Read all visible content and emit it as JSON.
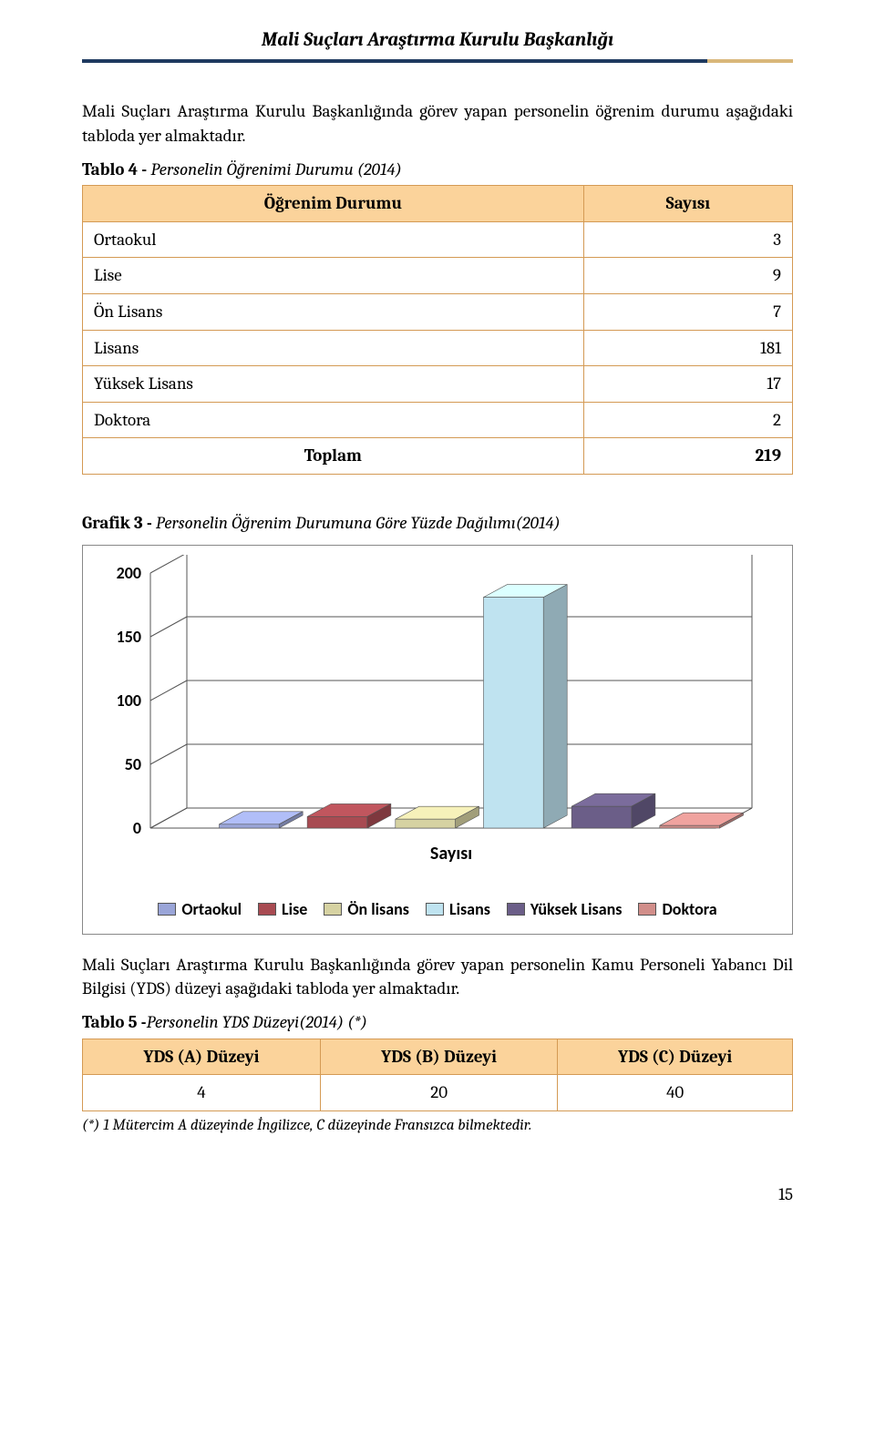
{
  "header": {
    "title": "Mali Suçları Araştırma Kurulu Başkanlığı"
  },
  "intro1": "Mali Suçları Araştırma Kurulu Başkanlığında görev yapan personelin öğrenim durumu aşağıdaki tabloda yer almaktadır.",
  "table4": {
    "caption_bold": "Tablo 4 -",
    "caption_ital": " Personelin Öğrenimi Durumu (2014)",
    "head_col1": "Öğrenim Durumu",
    "head_col2": "Sayısı",
    "rows": [
      {
        "label": "Ortaokul",
        "value": "3"
      },
      {
        "label": "Lise",
        "value": "9"
      },
      {
        "label": "Ön Lisans",
        "value": "7"
      },
      {
        "label": "Lisans",
        "value": "181"
      },
      {
        "label": "Yüksek Lisans",
        "value": "17"
      },
      {
        "label": "Doktora",
        "value": "2"
      }
    ],
    "total_label": "Toplam",
    "total_value": "219"
  },
  "chart": {
    "title_bold": "Grafik 3 -",
    "title_ital": " Personelin Öğrenim Durumuna Göre Yüzde Dağılımı(2014)",
    "ylim": [
      0,
      200
    ],
    "yticks": [
      "200",
      "150",
      "100",
      "50",
      "0"
    ],
    "xaxis_label": "Sayısı",
    "background_color": "#ffffff",
    "grid_color": "#555555",
    "series": [
      {
        "name": "Ortaokul",
        "value": 3,
        "color": "#9aa5d8"
      },
      {
        "name": "Lise",
        "value": 9,
        "color": "#a84b52"
      },
      {
        "name": "Ön lisans",
        "value": 7,
        "color": "#d6d2a2"
      },
      {
        "name": "Lisans",
        "value": 181,
        "color": "#bfe3f0"
      },
      {
        "name": "Yüksek Lisans",
        "value": 17,
        "color": "#6b5e88"
      },
      {
        "name": "Doktora",
        "value": 2,
        "color": "#d18e8a"
      }
    ]
  },
  "intro2": "Mali Suçları Araştırma Kurulu Başkanlığında görev yapan personelin Kamu Personeli Yabancı Dil Bilgisi (YDS) düzeyi aşağıdaki tabloda yer almaktadır.",
  "table5": {
    "caption_bold": "Tablo 5 -",
    "caption_ital": "Personelin YDS Düzeyi(2014) (*)",
    "heads": [
      "YDS (A) Düzeyi",
      "YDS (B) Düzeyi",
      "YDS (C) Düzeyi"
    ],
    "row": [
      "4",
      "20",
      "40"
    ]
  },
  "footnote": "(*) 1 Mütercim A düzeyinde İngilizce, C düzeyinde Fransızca bilmektedir.",
  "page_number": "15"
}
